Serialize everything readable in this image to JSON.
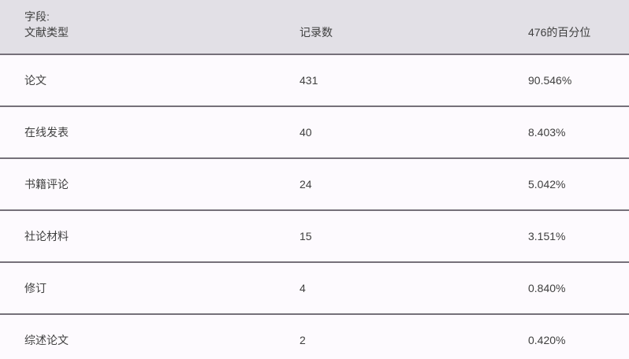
{
  "table": {
    "field_label": "字段:",
    "columns": [
      {
        "label": "文献类型"
      },
      {
        "label": "记录数"
      },
      {
        "label": "476的百分位"
      }
    ],
    "rows": [
      {
        "type": "论文",
        "count": "431",
        "percent": "90.546%"
      },
      {
        "type": "在线发表",
        "count": "40",
        "percent": "8.403%"
      },
      {
        "type": "书籍评论",
        "count": "24",
        "percent": "5.042%"
      },
      {
        "type": "社论材料",
        "count": "15",
        "percent": "3.151%"
      },
      {
        "type": "修订",
        "count": "4",
        "percent": "0.840%"
      },
      {
        "type": "综述论文",
        "count": "2",
        "percent": "0.420%"
      }
    ],
    "total_records": "476",
    "colors": {
      "header_bg": "#e2e0e6",
      "body_bg": "#fdfafe",
      "separator": "#757079",
      "text": "#3f3f3f"
    }
  }
}
